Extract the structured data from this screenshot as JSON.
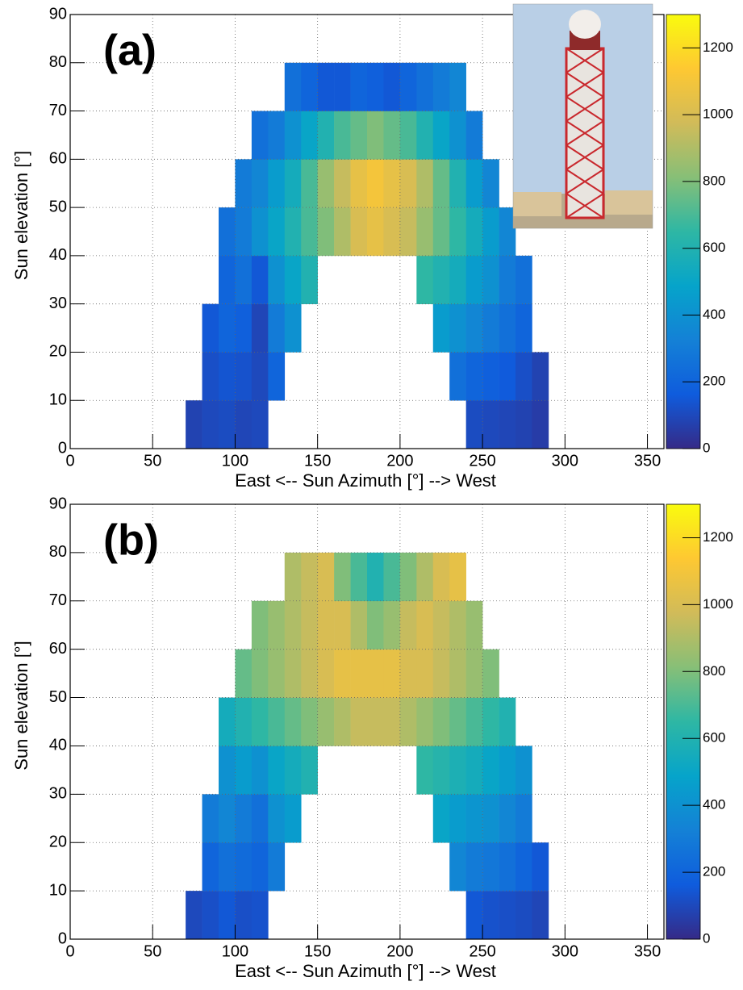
{
  "chart_data": [
    {
      "type": "heatmap",
      "panel_label": "(a)",
      "xlabel": "East  <--   Sun Azimuth [°]   --> West",
      "ylabel": "Sun elevation [°]",
      "xlim": [
        0,
        360
      ],
      "ylim": [
        0,
        90
      ],
      "xticks": [
        0,
        50,
        100,
        150,
        200,
        250,
        300,
        350
      ],
      "yticks": [
        0,
        10,
        20,
        30,
        40,
        50,
        60,
        70,
        80,
        90
      ],
      "zlim": [
        0,
        1300
      ],
      "zticks": [
        0,
        200,
        400,
        600,
        800,
        1000,
        1200
      ],
      "grid": true,
      "colormap": [
        "#352a87",
        "#0f5cdd",
        "#1481d6",
        "#06a4ca",
        "#2eb7a4",
        "#87bf77",
        "#d1bb59",
        "#fec832",
        "#f9fb0e"
      ],
      "x_bins": [
        70,
        80,
        90,
        100,
        110,
        120,
        130,
        140,
        150,
        160,
        170,
        180,
        190,
        200,
        210,
        220,
        230,
        240,
        250,
        260,
        270,
        280,
        290
      ],
      "y_bins": [
        0,
        10,
        20,
        30,
        40,
        50,
        60,
        70,
        80
      ],
      "z": [
        [
          80,
          100,
          110,
          90,
          100,
          null,
          null,
          null,
          null,
          null,
          null,
          null,
          null,
          null,
          null,
          null,
          null,
          110,
          100,
          90,
          80,
          60
        ],
        [
          null,
          120,
          140,
          130,
          100,
          200,
          null,
          null,
          null,
          null,
          null,
          null,
          null,
          null,
          null,
          null,
          250,
          200,
          180,
          160,
          120,
          80
        ],
        [
          null,
          150,
          200,
          180,
          90,
          300,
          400,
          null,
          null,
          null,
          null,
          null,
          null,
          null,
          null,
          450,
          400,
          350,
          300,
          250,
          200,
          null
        ],
        [
          null,
          null,
          200,
          250,
          150,
          400,
          500,
          600,
          null,
          null,
          null,
          null,
          null,
          null,
          650,
          600,
          550,
          450,
          400,
          300,
          250,
          null
        ],
        [
          null,
          null,
          250,
          300,
          400,
          500,
          600,
          700,
          800,
          900,
          1000,
          1050,
          1000,
          950,
          850,
          750,
          650,
          550,
          450,
          350,
          null,
          null
        ],
        [
          null,
          null,
          null,
          300,
          350,
          450,
          550,
          700,
          850,
          950,
          1050,
          1100,
          1050,
          1000,
          900,
          750,
          600,
          450,
          350,
          null,
          null,
          null
        ],
        [
          null,
          null,
          null,
          null,
          250,
          300,
          400,
          500,
          600,
          700,
          750,
          800,
          750,
          700,
          600,
          500,
          400,
          300,
          null,
          null,
          null,
          null
        ],
        [
          null,
          null,
          null,
          null,
          null,
          null,
          250,
          200,
          150,
          150,
          200,
          180,
          150,
          200,
          250,
          300,
          350,
          null,
          null,
          null,
          null,
          null
        ]
      ]
    },
    {
      "type": "heatmap",
      "panel_label": "(b)",
      "xlabel": "East  <--   Sun Azimuth [°]   --> West",
      "ylabel": "Sun elevation [°]",
      "xlim": [
        0,
        360
      ],
      "ylim": [
        0,
        90
      ],
      "xticks": [
        0,
        50,
        100,
        150,
        200,
        250,
        300,
        350
      ],
      "yticks": [
        0,
        10,
        20,
        30,
        40,
        50,
        60,
        70,
        80,
        90
      ],
      "zlim": [
        0,
        1300
      ],
      "zticks": [
        0,
        200,
        400,
        600,
        800,
        1000,
        1200
      ],
      "grid": true,
      "colormap": [
        "#352a87",
        "#0f5cdd",
        "#1481d6",
        "#06a4ca",
        "#2eb7a4",
        "#87bf77",
        "#d1bb59",
        "#fec832",
        "#f9fb0e"
      ],
      "x_bins": [
        70,
        80,
        90,
        100,
        110,
        120,
        130,
        140,
        150,
        160,
        170,
        180,
        190,
        200,
        210,
        220,
        230,
        240,
        250,
        260,
        270,
        280,
        290
      ],
      "y_bins": [
        0,
        10,
        20,
        30,
        40,
        50,
        60,
        70,
        80
      ],
      "z": [
        [
          100,
          120,
          150,
          120,
          130,
          null,
          null,
          null,
          null,
          null,
          null,
          null,
          null,
          null,
          null,
          null,
          null,
          150,
          130,
          120,
          110,
          90
        ],
        [
          null,
          200,
          250,
          230,
          200,
          300,
          null,
          null,
          null,
          null,
          null,
          null,
          null,
          null,
          null,
          null,
          350,
          300,
          280,
          250,
          200,
          150
        ],
        [
          null,
          300,
          350,
          300,
          250,
          400,
          450,
          null,
          null,
          null,
          null,
          null,
          null,
          null,
          null,
          500,
          450,
          420,
          400,
          350,
          300,
          null
        ],
        [
          null,
          null,
          400,
          450,
          400,
          500,
          550,
          600,
          null,
          null,
          null,
          null,
          null,
          null,
          650,
          620,
          580,
          550,
          500,
          450,
          400,
          null
        ],
        [
          null,
          null,
          550,
          600,
          650,
          700,
          750,
          800,
          850,
          900,
          950,
          950,
          950,
          900,
          850,
          800,
          750,
          700,
          650,
          600,
          null,
          null
        ],
        [
          null,
          null,
          null,
          750,
          800,
          850,
          900,
          950,
          1000,
          1050,
          1050,
          1050,
          1050,
          1000,
          1000,
          950,
          900,
          850,
          800,
          null,
          null,
          null
        ],
        [
          null,
          null,
          null,
          null,
          800,
          850,
          900,
          950,
          1000,
          1000,
          900,
          800,
          850,
          950,
          1000,
          950,
          900,
          850,
          null,
          null,
          null,
          null
        ],
        [
          null,
          null,
          null,
          null,
          null,
          null,
          900,
          950,
          1000,
          800,
          700,
          600,
          700,
          800,
          900,
          1000,
          1050,
          null,
          null,
          null,
          null,
          null
        ]
      ]
    }
  ]
}
